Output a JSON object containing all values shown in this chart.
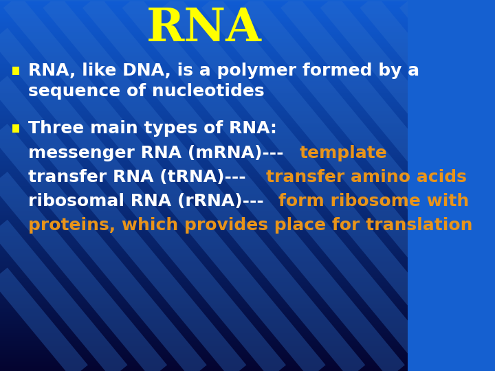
{
  "title": "RNA",
  "title_color": "#FFFF00",
  "title_fontsize": 48,
  "bg_color": "#1560D0",
  "bg_color_bottom": "#060630",
  "bullet_color": "#FFFF00",
  "white_color": "#FFFFFF",
  "orange_color": "#E8941A",
  "stripe_color": "#2060D8",
  "font_size_bullet": 18,
  "lines": [
    {
      "parts": [
        {
          "text": "messenger RNA (mRNA)---",
          "color": "#FFFFFF"
        },
        {
          "text": "template",
          "color": "#E8941A"
        }
      ]
    },
    {
      "parts": [
        {
          "text": "transfer RNA (tRNA)--- ",
          "color": "#FFFFFF"
        },
        {
          "text": "transfer amino acids",
          "color": "#E8941A"
        }
      ]
    },
    {
      "parts": [
        {
          "text": "ribosomal RNA (rRNA)---",
          "color": "#FFFFFF"
        },
        {
          "text": "form ribosome with",
          "color": "#E8941A"
        }
      ]
    },
    {
      "parts": [
        {
          "text": "proteins, which provides place for translation",
          "color": "#E8941A"
        }
      ]
    }
  ]
}
